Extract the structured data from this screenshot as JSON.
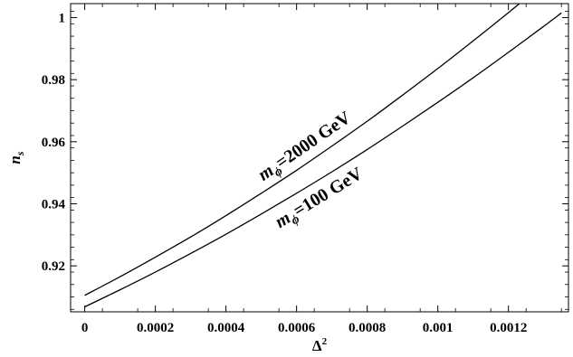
{
  "chart_data": {
    "type": "line",
    "title": "",
    "xlabel": {
      "base": "Δ",
      "sup": "2"
    },
    "ylabel": {
      "base": "n",
      "sub": "s"
    },
    "xlim": [
      -4e-05,
      0.00137
    ],
    "ylim": [
      0.9052,
      1.0045
    ],
    "xticks": [
      0,
      0.0002,
      0.0004,
      0.0006,
      0.0008,
      0.001,
      0.0012
    ],
    "xtick_labels": [
      "0",
      "0.0002",
      "0.0004",
      "0.0006",
      "0.0008",
      "0.001",
      "0.0012"
    ],
    "yticks": [
      0.92,
      0.94,
      0.96,
      0.98,
      1
    ],
    "ytick_labels": [
      "0.92",
      "0.94",
      "0.96",
      "0.98",
      "1"
    ],
    "grid": false,
    "legend": "none",
    "series": [
      {
        "name": "m_ϕ=2000 GeV",
        "label": {
          "base": "m",
          "sub": "ϕ",
          "rest": "=2000 GeV"
        },
        "x": [
          0,
          0.0001,
          0.0002,
          0.0003,
          0.0004,
          0.0005,
          0.0006,
          0.0007,
          0.0008,
          0.0009,
          0.001,
          0.0011,
          0.0012,
          0.00125
        ],
        "y": [
          0.9105,
          0.9165,
          0.9228,
          0.9293,
          0.9362,
          0.9434,
          0.9508,
          0.9586,
          0.9666,
          0.975,
          0.9836,
          0.9925,
          1.0016,
          1.0063
        ]
      },
      {
        "name": "m_ϕ=100 GeV",
        "label": {
          "base": "m",
          "sub": "ϕ",
          "rest": "=100 GeV"
        },
        "x": [
          0,
          0.0001,
          0.0002,
          0.0003,
          0.0004,
          0.0005,
          0.0006,
          0.0007,
          0.0008,
          0.0009,
          0.001,
          0.0011,
          0.0012,
          0.0013,
          0.00135
        ],
        "y": [
          0.9068,
          0.9123,
          0.918,
          0.924,
          0.9302,
          0.9367,
          0.9434,
          0.9503,
          0.9575,
          0.965,
          0.9727,
          0.9806,
          0.9888,
          0.9972,
          1.0015
        ]
      }
    ]
  }
}
